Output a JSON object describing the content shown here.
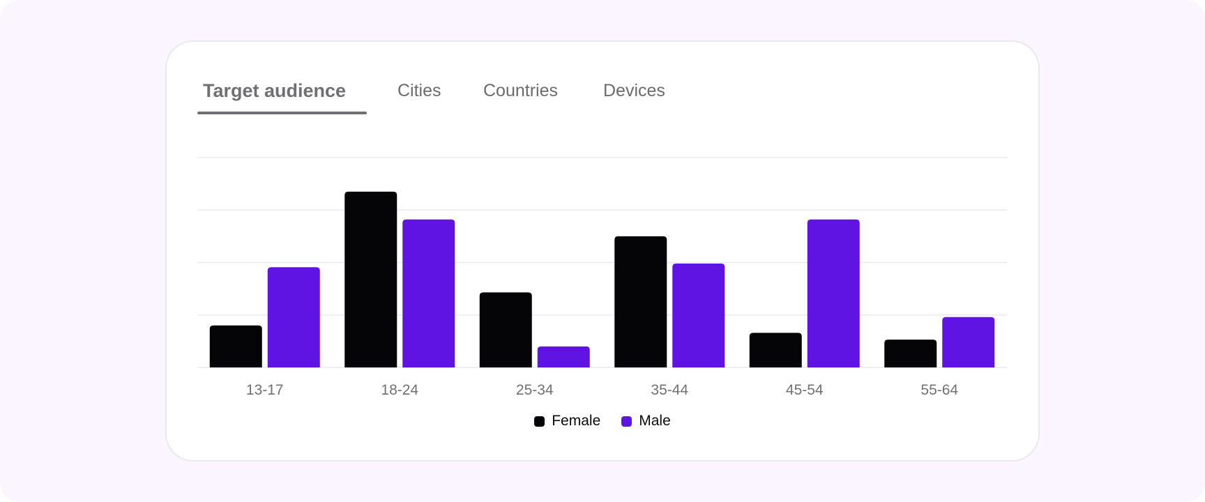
{
  "tabs": [
    {
      "label": "Target audience",
      "active": true
    },
    {
      "label": "Cities",
      "active": false
    },
    {
      "label": "Countries",
      "active": false
    },
    {
      "label": "Devices",
      "active": false
    }
  ],
  "colors": {
    "female": "#050406",
    "male": "#5f14e4",
    "grid": "#ebe8ee",
    "tick_text": "#707074"
  },
  "chart_data": {
    "type": "bar",
    "categories": [
      "13-17",
      "18-24",
      "25-34",
      "35-44",
      "45-54",
      "55-64"
    ],
    "series": [
      {
        "name": "Female",
        "values": [
          8,
          33.5,
          14.3,
          25,
          6.6,
          5.3
        ]
      },
      {
        "name": "Male",
        "values": [
          19.1,
          28.2,
          4,
          19.8,
          28.2,
          9.6
        ]
      }
    ],
    "ylim": [
      0,
      40
    ],
    "grid": true,
    "legend": "bottom-center",
    "title": "",
    "xlabel": "",
    "ylabel": ""
  }
}
